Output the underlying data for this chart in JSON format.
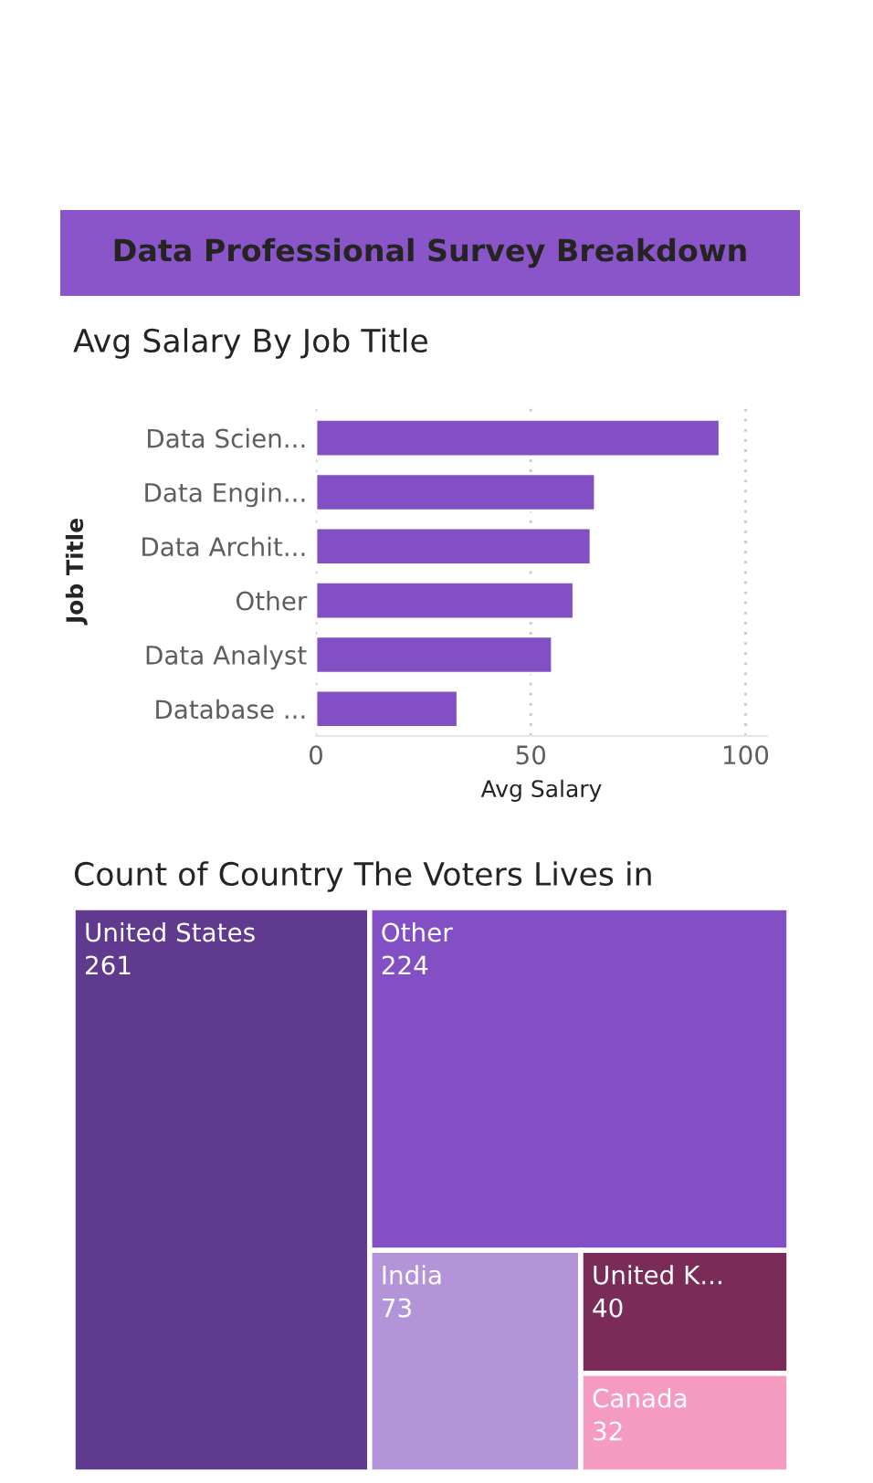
{
  "chart_data": [
    {
      "type": "other",
      "title": "Data Professional Survey Breakdown"
    },
    {
      "type": "bar",
      "orientation": "horizontal",
      "title": "Avg Salary By Job Title",
      "xlabel": "Avg Salary",
      "ylabel": "Job Title",
      "categories": [
        "Data Scien...",
        "Data Engin...",
        "Data Archit...",
        "Other",
        "Data Analyst",
        "Database ..."
      ],
      "values": [
        94,
        65,
        64,
        60,
        55,
        33
      ],
      "color": "#8250c4",
      "xlim": [
        0,
        105
      ],
      "xticks": [
        0,
        50,
        100
      ],
      "grid": "x",
      "legend": false
    },
    {
      "type": "other",
      "title": "Count of Country The Voters Lives in",
      "categories": [
        "United States",
        "Other",
        "India",
        "United K...",
        "Canada"
      ],
      "values": [
        261,
        224,
        73,
        40,
        32
      ],
      "colors": [
        "#5f3a8f",
        "#8250c4",
        "#b394d9",
        "#7b2b57",
        "#f59bc1"
      ],
      "data_labels": true
    }
  ]
}
